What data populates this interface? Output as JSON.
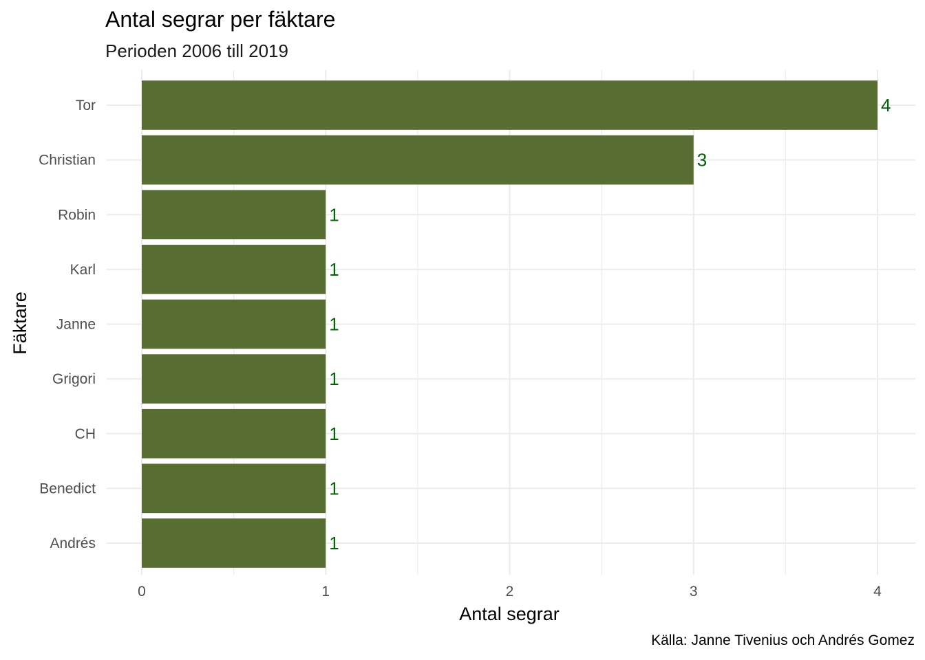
{
  "chart_data": {
    "type": "bar",
    "orientation": "horizontal",
    "title": "Antal segrar per fäktare",
    "subtitle": "Perioden 2006 till 2019",
    "caption": "Källa: Janne Tivenius och Andrés Gomez",
    "xlabel": "Antal segrar",
    "ylabel": "Fäktare",
    "categories": [
      "Tor",
      "Christian",
      "Robin",
      "Karl",
      "Janne",
      "Grigori",
      "CH",
      "Benedict",
      "Andrés"
    ],
    "values": [
      4,
      3,
      1,
      1,
      1,
      1,
      1,
      1,
      1
    ],
    "data_labels": [
      "4",
      "3",
      "1",
      "1",
      "1",
      "1",
      "1",
      "1",
      "1"
    ],
    "xlim": [
      0,
      4
    ],
    "xticks": [
      0,
      1,
      2,
      3,
      4
    ],
    "grid": true,
    "legend": "none",
    "colors": {
      "bar": "#586d32",
      "label": "#006400",
      "grid": "#ebebeb"
    }
  }
}
